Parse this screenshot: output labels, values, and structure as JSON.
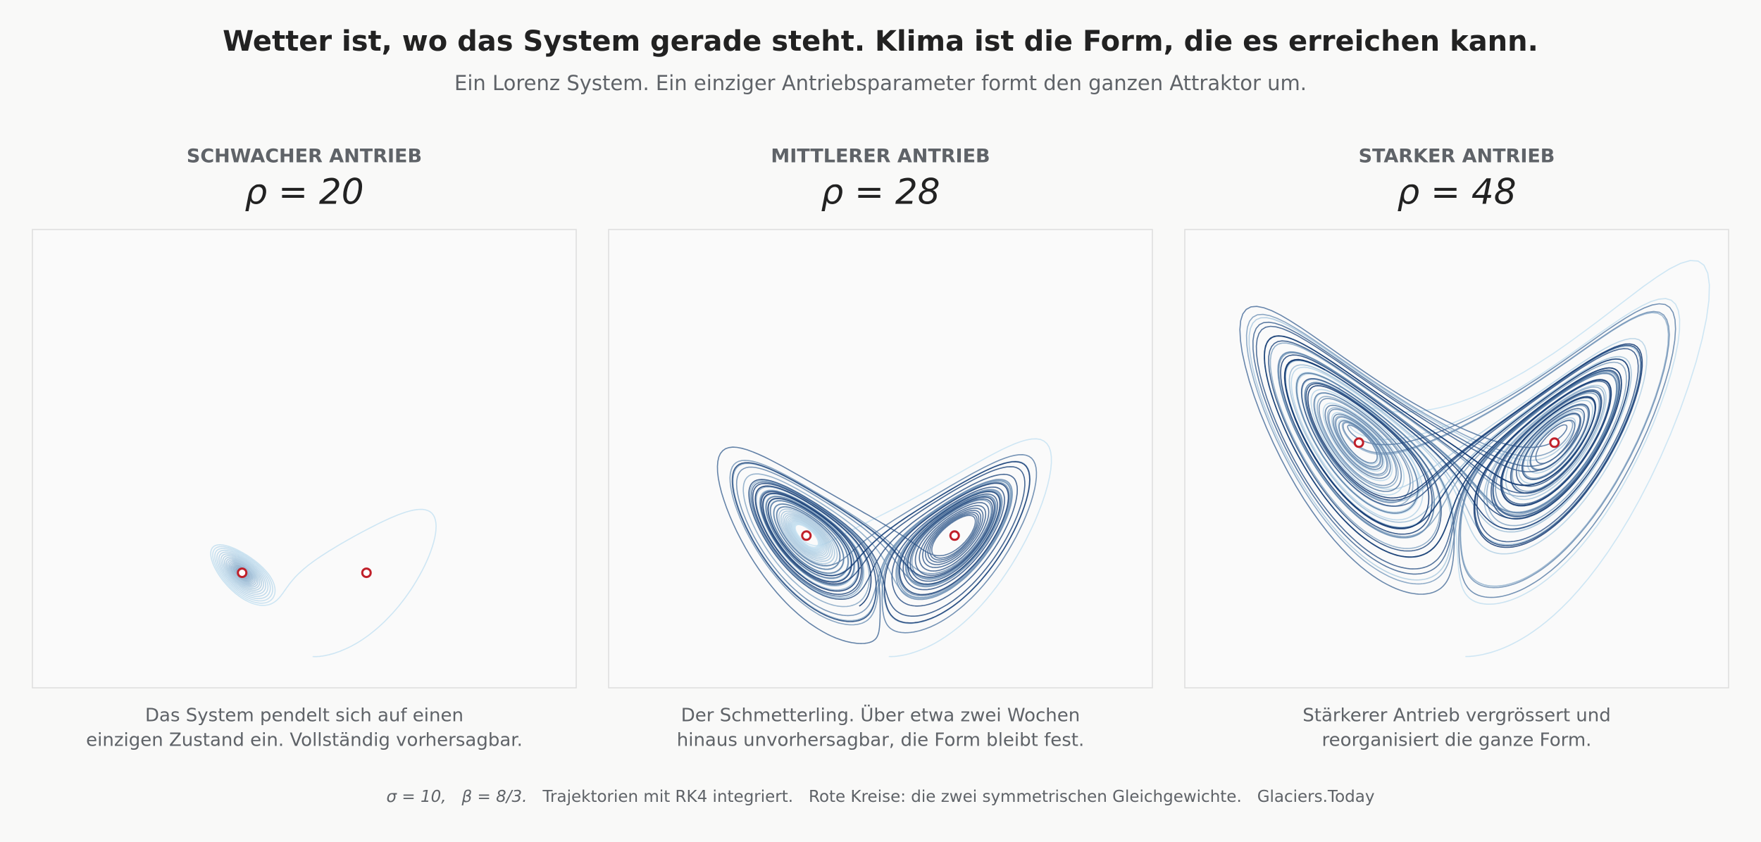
{
  "chart_data": {
    "type": "line",
    "title": "Wetter ist, wo das System gerade steht. Klima ist die Form, die es erreichen kann.",
    "subtitle": "Ein Lorenz System. Ein einziger Antriebsparameter formt den ganzen Attraktor um.",
    "sigma": {
      "value": 10,
      "label": "σ = 10,"
    },
    "beta": {
      "value": 2.6666666666666665,
      "label": "β = 8/3."
    },
    "panels": [
      {
        "heading": "SCHWACHER ANTRIEB",
        "rho": {
          "value": 20,
          "label": "ρ = 20"
        },
        "caption": [
          "Das System pendelt sich auf einen",
          "einzigen Zustand ein. Vollständig vorhersagbar."
        ]
      },
      {
        "heading": "MITTLERER ANTRIEB",
        "rho": {
          "value": 28,
          "label": "ρ = 28"
        },
        "caption": [
          "Der Schmetterling. Über etwa zwei Wochen",
          "hinaus unvorhersagbar, die Form bleibt fest."
        ]
      },
      {
        "heading": "STARKER ANTRIEB",
        "rho": {
          "value": 48,
          "label": "ρ = 48"
        },
        "caption": [
          "Stärkerer Antrieb vergrössert und",
          "reorganisiert die ganze Form."
        ]
      }
    ],
    "footer": "Trajektorien mit RK4 integriert.   Rote Kreise: die zwei symmetrischen Gleichgewichte.   Glaciers.Today"
  }
}
